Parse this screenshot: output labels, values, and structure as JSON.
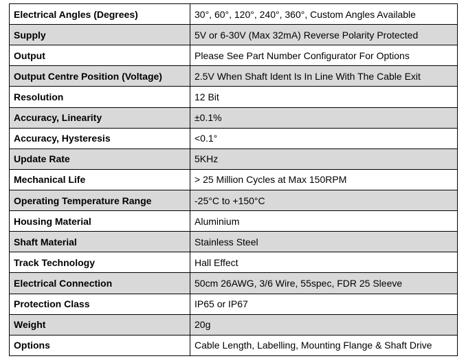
{
  "spec_table": {
    "rows": [
      {
        "label": "Electrical Angles (Degrees)",
        "value": "30°, 60°, 120°, 240°, 360°, Custom Angles Available"
      },
      {
        "label": "Supply",
        "value": "5V or 6-30V (Max 32mA) Reverse Polarity Protected"
      },
      {
        "label": "Output",
        "value": "Please See Part Number Configurator For Options"
      },
      {
        "label": "Output Centre Position (Voltage)",
        "value": "2.5V When Shaft Ident Is In Line With The Cable Exit"
      },
      {
        "label": "Resolution",
        "value": "12 Bit"
      },
      {
        "label": "Accuracy, Linearity",
        "value": "±0.1%"
      },
      {
        "label": "Accuracy, Hysteresis",
        "value": "<0.1°"
      },
      {
        "label": "Update Rate",
        "value": "5KHz"
      },
      {
        "label": "Mechanical Life",
        "value": "> 25 Million Cycles at Max 150RPM"
      },
      {
        "label": "Operating Temperature Range",
        "value": "-25°C to +150°C"
      },
      {
        "label": "Housing Material",
        "value": "Aluminium"
      },
      {
        "label": "Shaft Material",
        "value": "Stainless Steel"
      },
      {
        "label": "Track Technology",
        "value": "Hall Effect"
      },
      {
        "label": "Electrical Connection",
        "value": "50cm 26AWG, 3/6 Wire, 55spec, FDR 25 Sleeve"
      },
      {
        "label": "Protection Class",
        "value": "IP65 or IP67"
      },
      {
        "label": "Weight",
        "value": "20g"
      },
      {
        "label": "Options",
        "value": "Cable Length, Labelling, Mounting Flange & Shaft Drive"
      }
    ]
  },
  "colors": {
    "shaded_row": "#d9d9d9",
    "plain_row": "#ffffff",
    "border": "#000000"
  }
}
